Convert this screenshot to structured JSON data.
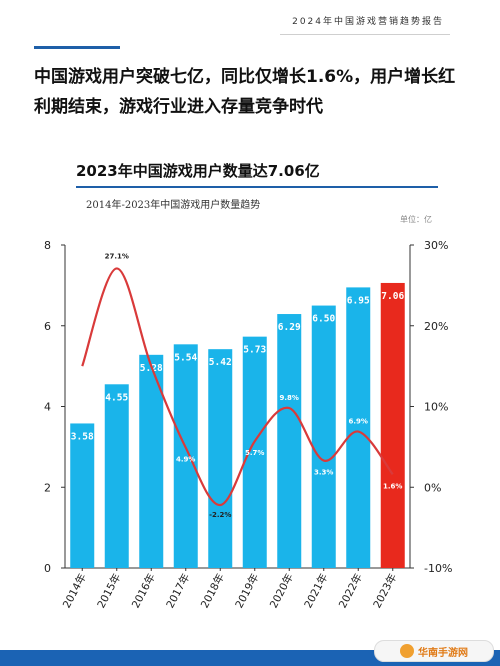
{
  "header": {
    "report_title": "2024年中国游戏营销趋势报告"
  },
  "headline": "中国游戏用户突破七亿，同比仅增长1.6%，用户增长红利期结束，游戏行业进入存量竞争时代",
  "footer": {
    "watermark": "华南手游网"
  },
  "colors": {
    "bar": "#1ab4ea",
    "bar_highlight": "#e8291d",
    "line": "#d93a3a",
    "accent": "#1e5fa8",
    "footer": "#1b63b4"
  },
  "chart_data": {
    "type": "bar",
    "title": "2023年中国游戏用户数量达7.06亿",
    "subtitle": "2014年-2023年中国游戏用户数量趋势",
    "unit": "单位：亿",
    "categories": [
      "2014年",
      "2015年",
      "2016年",
      "2017年",
      "2018年",
      "2019年",
      "2020年",
      "2021年",
      "2022年",
      "2023年"
    ],
    "series": [
      {
        "type": "bar",
        "axis": "left",
        "values": [
          3.58,
          4.55,
          5.28,
          5.54,
          5.42,
          5.73,
          6.29,
          6.5,
          6.95,
          7.06
        ],
        "labels": [
          "3.58",
          "4.55",
          "5.28",
          "5.54",
          "5.42",
          "5.73",
          "6.29",
          "6.50",
          "6.95",
          "7.06"
        ]
      },
      {
        "type": "line",
        "axis": "right",
        "values": [
          15,
          27.1,
          15,
          4.9,
          -2.2,
          5.7,
          9.8,
          3.3,
          6.9,
          1.6
        ],
        "labels": [
          "",
          "27.1%",
          "",
          "4.9%",
          "-2.2%",
          "5.7%",
          "9.8%",
          "3.3%",
          "6.9%",
          "1.6%"
        ]
      }
    ],
    "ylim_left": [
      0,
      8
    ],
    "yticks_left": [
      "0",
      "2",
      "4",
      "6",
      "8"
    ],
    "yticks_left_values": [
      0,
      2,
      4,
      6,
      8
    ],
    "ylim_right": [
      -10,
      30
    ],
    "yticks_right": [
      "-10%",
      "0%",
      "10%",
      "20%",
      "30%"
    ],
    "yticks_right_values": [
      -10,
      0,
      10,
      20,
      30
    ],
    "grid": false,
    "legend": "none"
  }
}
